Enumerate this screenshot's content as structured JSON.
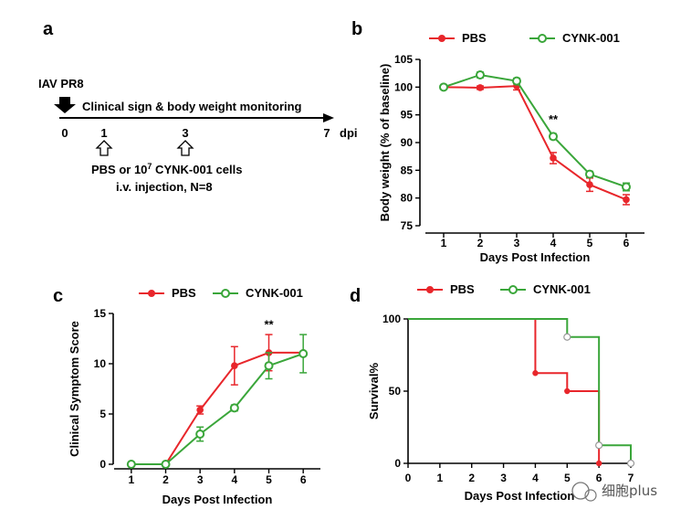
{
  "colors": {
    "pbs": "#e8262b",
    "cynk": "#3aa63a",
    "axis": "#000000"
  },
  "panel_a": {
    "label": "a",
    "virus": "IAV PR8",
    "monitoring": "Clinical sign & body weight monitoring",
    "ticks": [
      "0",
      "1",
      "3",
      "7"
    ],
    "unit": "dpi",
    "treatment_line1_pre": "PBS or 10",
    "treatment_line1_sup": "7",
    "treatment_line1_post": " CYNK-001 cells",
    "treatment_line2": "i.v. injection, N=8"
  },
  "watermark": "细胞plus",
  "chart_data": [
    {
      "panel": "b",
      "type": "line",
      "xlabel": "Days Post Infection",
      "ylabel": "Body weight (% of baseline)",
      "x": [
        1,
        2,
        3,
        4,
        5,
        6
      ],
      "xlim": [
        0.5,
        6.5
      ],
      "ylim": [
        75,
        105
      ],
      "xticks": [
        "1",
        "2",
        "3",
        "4",
        "5",
        "6"
      ],
      "yticks": [
        "75",
        "80",
        "85",
        "90",
        "95",
        "100",
        "105"
      ],
      "legend": "top",
      "series": [
        {
          "name": "PBS",
          "values": [
            100,
            99.9,
            100.2,
            87.2,
            82.4,
            79.7
          ],
          "errors": [
            0.3,
            0.3,
            0.7,
            1.0,
            1.2,
            0.9
          ]
        },
        {
          "name": "CYNK-001",
          "values": [
            100,
            102.2,
            101.1,
            91.1,
            84.3,
            82.0
          ],
          "errors": [
            0.3,
            0.5,
            0.5,
            0.5,
            0.5,
            0.7
          ]
        }
      ],
      "annotations": [
        {
          "x": 4,
          "y": 93.5,
          "text": "**"
        }
      ]
    },
    {
      "panel": "c",
      "type": "line",
      "xlabel": "Days Post Infection",
      "ylabel": "Clinical Symptom Score",
      "x": [
        1,
        2,
        3,
        4,
        5,
        6
      ],
      "xlim": [
        0.5,
        6.5
      ],
      "ylim": [
        0,
        15
      ],
      "xticks": [
        "1",
        "2",
        "3",
        "4",
        "5",
        "6"
      ],
      "yticks": [
        "0",
        "5",
        "10",
        "15"
      ],
      "legend": "top",
      "series": [
        {
          "name": "PBS",
          "values": [
            0,
            0,
            5.4,
            9.8,
            11.1,
            11.1
          ],
          "errors": [
            0,
            0,
            0.4,
            1.9,
            1.8,
            0
          ]
        },
        {
          "name": "CYNK-001",
          "values": [
            0,
            0,
            3.0,
            5.6,
            9.8,
            11.0
          ],
          "errors": [
            0,
            0,
            0.7,
            0.3,
            1.3,
            1.9
          ]
        }
      ],
      "annotations": [
        {
          "x": 5,
          "y": 13.5,
          "text": "**"
        }
      ]
    },
    {
      "panel": "d",
      "type": "line",
      "xlabel": "Days Post Infection",
      "ylabel": "Survival%",
      "xlim": [
        0,
        7
      ],
      "ylim": [
        0,
        100
      ],
      "xticks": [
        "0",
        "1",
        "2",
        "3",
        "4",
        "5",
        "6",
        "7"
      ],
      "yticks": [
        "0",
        "50",
        "100"
      ],
      "legend": "top",
      "series": [
        {
          "name": "PBS",
          "x": [
            0,
            4,
            5,
            6
          ],
          "values": [
            100,
            62.5,
            50,
            0
          ]
        },
        {
          "name": "CYNK-001",
          "x": [
            0,
            5,
            6,
            7
          ],
          "values": [
            100,
            87.5,
            12.5,
            0
          ]
        }
      ]
    }
  ]
}
